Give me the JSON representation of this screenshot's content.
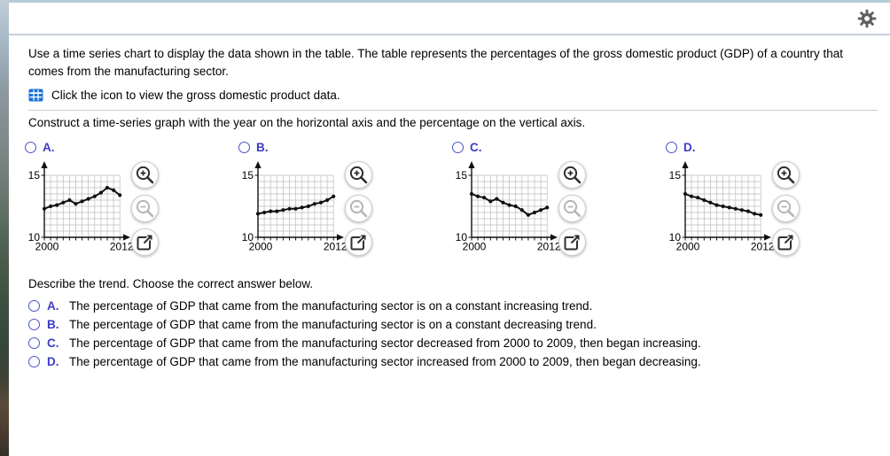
{
  "colors": {
    "accent_letter_blue": "#3c3cc7",
    "radio_outline_blue": "#4a55c4",
    "table_icon_blue": "#1b70d8",
    "gear_gray": "#5f5f5f",
    "chart_ink": "#111111",
    "chart_grid": "#bdbdbd",
    "icon_active": "#2f2f2f",
    "icon_disabled": "#b5b5b5",
    "divider_gray": "#cccccc"
  },
  "question": {
    "intro": "Use a time series chart to display the data shown in the table. The table represents the percentages of the gross domestic product (GDP) of a country that comes from the manufacturing sector.",
    "view_data_label": "Click the icon to view the gross domestic product data.",
    "construct_prompt": "Construct a time-series graph with the year on the horizontal axis and the percentage on the vertical axis."
  },
  "graph_options": {
    "letters": [
      "A.",
      "B.",
      "C.",
      "D."
    ],
    "icon_buttons": [
      "zoom-in",
      "zoom-out",
      "open-in-new-window"
    ]
  },
  "chart_data": [
    {
      "type": "line",
      "option": "A",
      "x": [
        2000,
        2001,
        2002,
        2003,
        2004,
        2005,
        2006,
        2007,
        2008,
        2009,
        2010,
        2011,
        2012
      ],
      "values": [
        12.3,
        12.5,
        12.6,
        12.8,
        13.0,
        12.7,
        12.9,
        13.1,
        13.3,
        13.6,
        14.0,
        13.8,
        13.4
      ],
      "ylim": [
        10,
        15
      ],
      "xlim": [
        2000,
        2012
      ],
      "y_tick_labels": [
        "15",
        "10"
      ],
      "x_tick_labels": [
        "2000",
        "2012"
      ],
      "grid": true,
      "legend": "none"
    },
    {
      "type": "line",
      "option": "B",
      "x": [
        2000,
        2001,
        2002,
        2003,
        2004,
        2005,
        2006,
        2007,
        2008,
        2009,
        2010,
        2011,
        2012
      ],
      "values": [
        11.9,
        12.0,
        12.1,
        12.1,
        12.2,
        12.3,
        12.3,
        12.4,
        12.5,
        12.7,
        12.8,
        13.0,
        13.3
      ],
      "ylim": [
        10,
        15
      ],
      "xlim": [
        2000,
        2012
      ],
      "y_tick_labels": [
        "15",
        "10"
      ],
      "x_tick_labels": [
        "2000",
        "2012"
      ],
      "grid": true,
      "legend": "none"
    },
    {
      "type": "line",
      "option": "C",
      "x": [
        2000,
        2001,
        2002,
        2003,
        2004,
        2005,
        2006,
        2007,
        2008,
        2009,
        2010,
        2011,
        2012
      ],
      "values": [
        13.5,
        13.3,
        13.2,
        12.9,
        13.1,
        12.8,
        12.6,
        12.5,
        12.2,
        11.8,
        12.0,
        12.2,
        12.4
      ],
      "ylim": [
        10,
        15
      ],
      "xlim": [
        2000,
        2012
      ],
      "y_tick_labels": [
        "15",
        "10"
      ],
      "x_tick_labels": [
        "2000",
        "2012"
      ],
      "grid": true,
      "legend": "none"
    },
    {
      "type": "line",
      "option": "D",
      "x": [
        2000,
        2001,
        2002,
        2003,
        2004,
        2005,
        2006,
        2007,
        2008,
        2009,
        2010,
        2011,
        2012
      ],
      "values": [
        13.5,
        13.3,
        13.2,
        13.0,
        12.8,
        12.6,
        12.5,
        12.4,
        12.3,
        12.2,
        12.1,
        11.9,
        11.8
      ],
      "ylim": [
        10,
        15
      ],
      "xlim": [
        2000,
        2012
      ],
      "y_tick_labels": [
        "15",
        "10"
      ],
      "x_tick_labels": [
        "2000",
        "2012"
      ],
      "grid": true,
      "legend": "none"
    }
  ],
  "trend_question": {
    "prompt": "Describe the trend. Choose the correct answer below.",
    "options": [
      {
        "letter": "A.",
        "text": "The percentage of GDP that came from the manufacturing sector is on a constant increasing trend."
      },
      {
        "letter": "B.",
        "text": "The percentage of GDP that came from the manufacturing sector is on a constant decreasing trend."
      },
      {
        "letter": "C.",
        "text": "The percentage of GDP that came from the manufacturing sector decreased from 2000 to 2009, then began increasing."
      },
      {
        "letter": "D.",
        "text": "The percentage of GDP that came from the manufacturing sector increased from 2000 to 2009, then began decreasing."
      }
    ]
  }
}
